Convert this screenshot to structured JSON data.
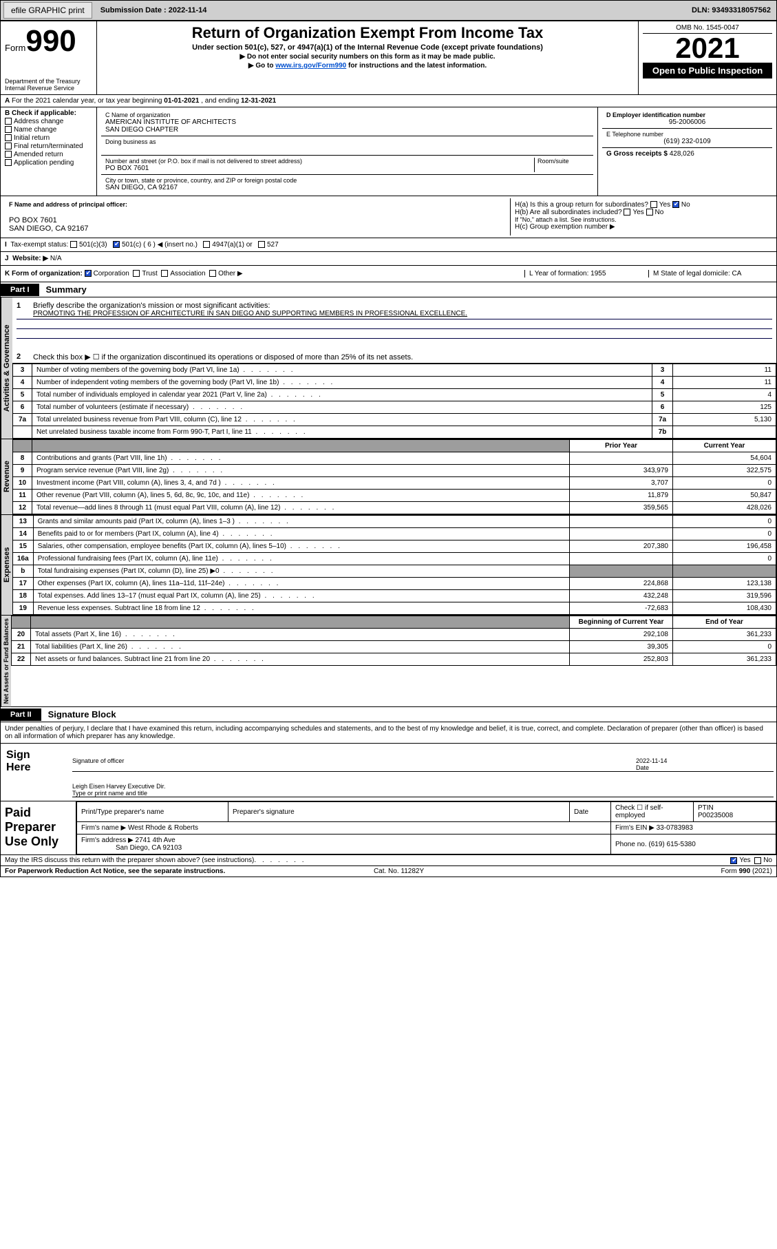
{
  "topbar": {
    "efile": "efile GRAPHIC print",
    "submission_label": "Submission Date : 2022-11-14",
    "dln": "DLN: 93493318057562"
  },
  "header": {
    "form_prefix": "Form",
    "form_number": "990",
    "main_title": "Return of Organization Exempt From Income Tax",
    "sub1": "Under section 501(c), 527, or 4947(a)(1) of the Internal Revenue Code (except private foundations)",
    "sub2": "▶ Do not enter social security numbers on this form as it may be made public.",
    "sub3_pre": "▶ Go to ",
    "sub3_link": "www.irs.gov/Form990",
    "sub3_post": " for instructions and the latest information.",
    "omb": "OMB No. 1545-0047",
    "year": "2021",
    "open": "Open to Public Inspection",
    "dept": "Department of the Treasury\nInternal Revenue Service"
  },
  "period": {
    "text_pre": "For the 2021 calendar year, or tax year beginning ",
    "begin": "01-01-2021",
    "mid": " , and ending ",
    "end": "12-31-2021"
  },
  "section_b": {
    "label": "B Check if applicable:",
    "opts": [
      "Address change",
      "Name change",
      "Initial return",
      "Final return/terminated",
      "Amended return",
      "Application pending"
    ]
  },
  "section_c": {
    "name_label": "C Name of organization",
    "name": "AMERICAN INSTITUTE OF ARCHITECTS\nSAN DIEGO CHAPTER",
    "dba_label": "Doing business as",
    "street_label": "Number and street (or P.O. box if mail is not delivered to street address)",
    "room_label": "Room/suite",
    "street": "PO BOX 7601",
    "city_label": "City or town, state or province, country, and ZIP or foreign postal code",
    "city": "SAN DIEGO, CA  92167"
  },
  "section_d": {
    "ein_label": "D Employer identification number",
    "ein": "95-2006006",
    "phone_label": "E Telephone number",
    "phone": "(619) 232-0109",
    "gross_label": "G Gross receipts $ ",
    "gross": "428,026"
  },
  "section_f": {
    "label": "F Name and address of principal officer:",
    "addr1": "PO BOX 7601",
    "addr2": "SAN DIEGO, CA  92167"
  },
  "section_h": {
    "ha": "H(a)  Is this a group return for subordinates?",
    "ha_no": "No",
    "hb": "H(b)  Are all subordinates included?",
    "hb_note": "If \"No,\" attach a list. See instructions.",
    "hc": "H(c)  Group exemption number ▶"
  },
  "tax_status": {
    "label": "Tax-exempt status:",
    "opt1": "501(c)(3)",
    "opt2": "501(c) ( 6 ) ◀ (insert no.)",
    "opt3": "4947(a)(1) or",
    "opt4": "527"
  },
  "website": {
    "label": "Website: ▶",
    "val": "N/A"
  },
  "section_k": {
    "label": "K Form of organization:",
    "opts": [
      "Corporation",
      "Trust",
      "Association",
      "Other ▶"
    ],
    "L": "L Year of formation: 1955",
    "M": "M State of legal domicile: CA"
  },
  "part1": {
    "tab": "Part I",
    "title": "Summary",
    "line1_label": "Briefly describe the organization's mission or most significant activities:",
    "mission": "PROMOTING THE PROFESSION OF ARCHITECTURE IN SAN DIEGO AND SUPPORTING MEMBERS IN PROFESSIONAL EXCELLENCE.",
    "line2": "Check this box ▶ ☐  if the organization discontinued its operations or disposed of more than 25% of its net assets."
  },
  "governance_rows": [
    {
      "n": "3",
      "desc": "Number of voting members of the governing body (Part VI, line 1a)",
      "key": "3",
      "val": "11"
    },
    {
      "n": "4",
      "desc": "Number of independent voting members of the governing body (Part VI, line 1b)",
      "key": "4",
      "val": "11"
    },
    {
      "n": "5",
      "desc": "Total number of individuals employed in calendar year 2021 (Part V, line 2a)",
      "key": "5",
      "val": "4"
    },
    {
      "n": "6",
      "desc": "Total number of volunteers (estimate if necessary)",
      "key": "6",
      "val": "125"
    },
    {
      "n": "7a",
      "desc": "Total unrelated business revenue from Part VIII, column (C), line 12",
      "key": "7a",
      "val": "5,130"
    },
    {
      "n": "",
      "desc": "Net unrelated business taxable income from Form 990-T, Part I, line 11",
      "key": "7b",
      "val": ""
    }
  ],
  "revenue_header": {
    "prior": "Prior Year",
    "current": "Current Year"
  },
  "revenue_rows": [
    {
      "n": "8",
      "desc": "Contributions and grants (Part VIII, line 1h)",
      "prior": "",
      "curr": "54,604"
    },
    {
      "n": "9",
      "desc": "Program service revenue (Part VIII, line 2g)",
      "prior": "343,979",
      "curr": "322,575"
    },
    {
      "n": "10",
      "desc": "Investment income (Part VIII, column (A), lines 3, 4, and 7d )",
      "prior": "3,707",
      "curr": "0"
    },
    {
      "n": "11",
      "desc": "Other revenue (Part VIII, column (A), lines 5, 6d, 8c, 9c, 10c, and 11e)",
      "prior": "11,879",
      "curr": "50,847"
    },
    {
      "n": "12",
      "desc": "Total revenue—add lines 8 through 11 (must equal Part VIII, column (A), line 12)",
      "prior": "359,565",
      "curr": "428,026"
    }
  ],
  "expense_rows": [
    {
      "n": "13",
      "desc": "Grants and similar amounts paid (Part IX, column (A), lines 1–3 )",
      "prior": "",
      "curr": "0"
    },
    {
      "n": "14",
      "desc": "Benefits paid to or for members (Part IX, column (A), line 4)",
      "prior": "",
      "curr": "0"
    },
    {
      "n": "15",
      "desc": "Salaries, other compensation, employee benefits (Part IX, column (A), lines 5–10)",
      "prior": "207,380",
      "curr": "196,458"
    },
    {
      "n": "16a",
      "desc": "Professional fundraising fees (Part IX, column (A), line 11e)",
      "prior": "",
      "curr": "0"
    },
    {
      "n": "b",
      "desc": "Total fundraising expenses (Part IX, column (D), line 25) ▶0",
      "prior": "shade",
      "curr": "shade"
    },
    {
      "n": "17",
      "desc": "Other expenses (Part IX, column (A), lines 11a–11d, 11f–24e)",
      "prior": "224,868",
      "curr": "123,138"
    },
    {
      "n": "18",
      "desc": "Total expenses. Add lines 13–17 (must equal Part IX, column (A), line 25)",
      "prior": "432,248",
      "curr": "319,596"
    },
    {
      "n": "19",
      "desc": "Revenue less expenses. Subtract line 18 from line 12",
      "prior": "-72,683",
      "curr": "108,430"
    }
  ],
  "netassets_header": {
    "begin": "Beginning of Current Year",
    "end": "End of Year"
  },
  "netassets_rows": [
    {
      "n": "20",
      "desc": "Total assets (Part X, line 16)",
      "prior": "292,108",
      "curr": "361,233"
    },
    {
      "n": "21",
      "desc": "Total liabilities (Part X, line 26)",
      "prior": "39,305",
      "curr": "0"
    },
    {
      "n": "22",
      "desc": "Net assets or fund balances. Subtract line 21 from line 20",
      "prior": "252,803",
      "curr": "361,233"
    }
  ],
  "side_labels": {
    "gov": "Activities & Governance",
    "rev": "Revenue",
    "exp": "Expenses",
    "net": "Net Assets or Fund Balances"
  },
  "part2": {
    "tab": "Part II",
    "title": "Signature Block",
    "decl": "Under penalties of perjury, I declare that I have examined this return, including accompanying schedules and statements, and to the best of my knowledge and belief, it is true, correct, and complete. Declaration of preparer (other than officer) is based on all information of which preparer has any knowledge."
  },
  "sign": {
    "label": "Sign Here",
    "sig_officer": "Signature of officer",
    "date": "2022-11-14",
    "date_label": "Date",
    "name": "Leigh Eisen Harvey  Executive Dir.",
    "name_label": "Type or print name and title"
  },
  "paid": {
    "label": "Paid Preparer Use Only",
    "col1": "Print/Type preparer's name",
    "col2": "Preparer's signature",
    "col3": "Date",
    "col4_pre": "Check ☐ if self-employed",
    "ptin_label": "PTIN",
    "ptin": "P00235008",
    "firm_name_label": "Firm's name    ▶",
    "firm_name": "West Rhode & Roberts",
    "firm_ein_label": "Firm's EIN ▶",
    "firm_ein": "33-0783983",
    "firm_addr_label": "Firm's address ▶",
    "firm_addr1": "2741 4th Ave",
    "firm_addr2": "San Diego, CA  92103",
    "phone_label": "Phone no.",
    "phone": "(619) 615-5380"
  },
  "footer": {
    "discuss": "May the IRS discuss this return with the preparer shown above? (see instructions)",
    "yes": "Yes",
    "no": "No",
    "paperwork": "For Paperwork Reduction Act Notice, see the separate instructions.",
    "cat": "Cat. No. 11282Y",
    "form": "Form 990 (2021)"
  }
}
